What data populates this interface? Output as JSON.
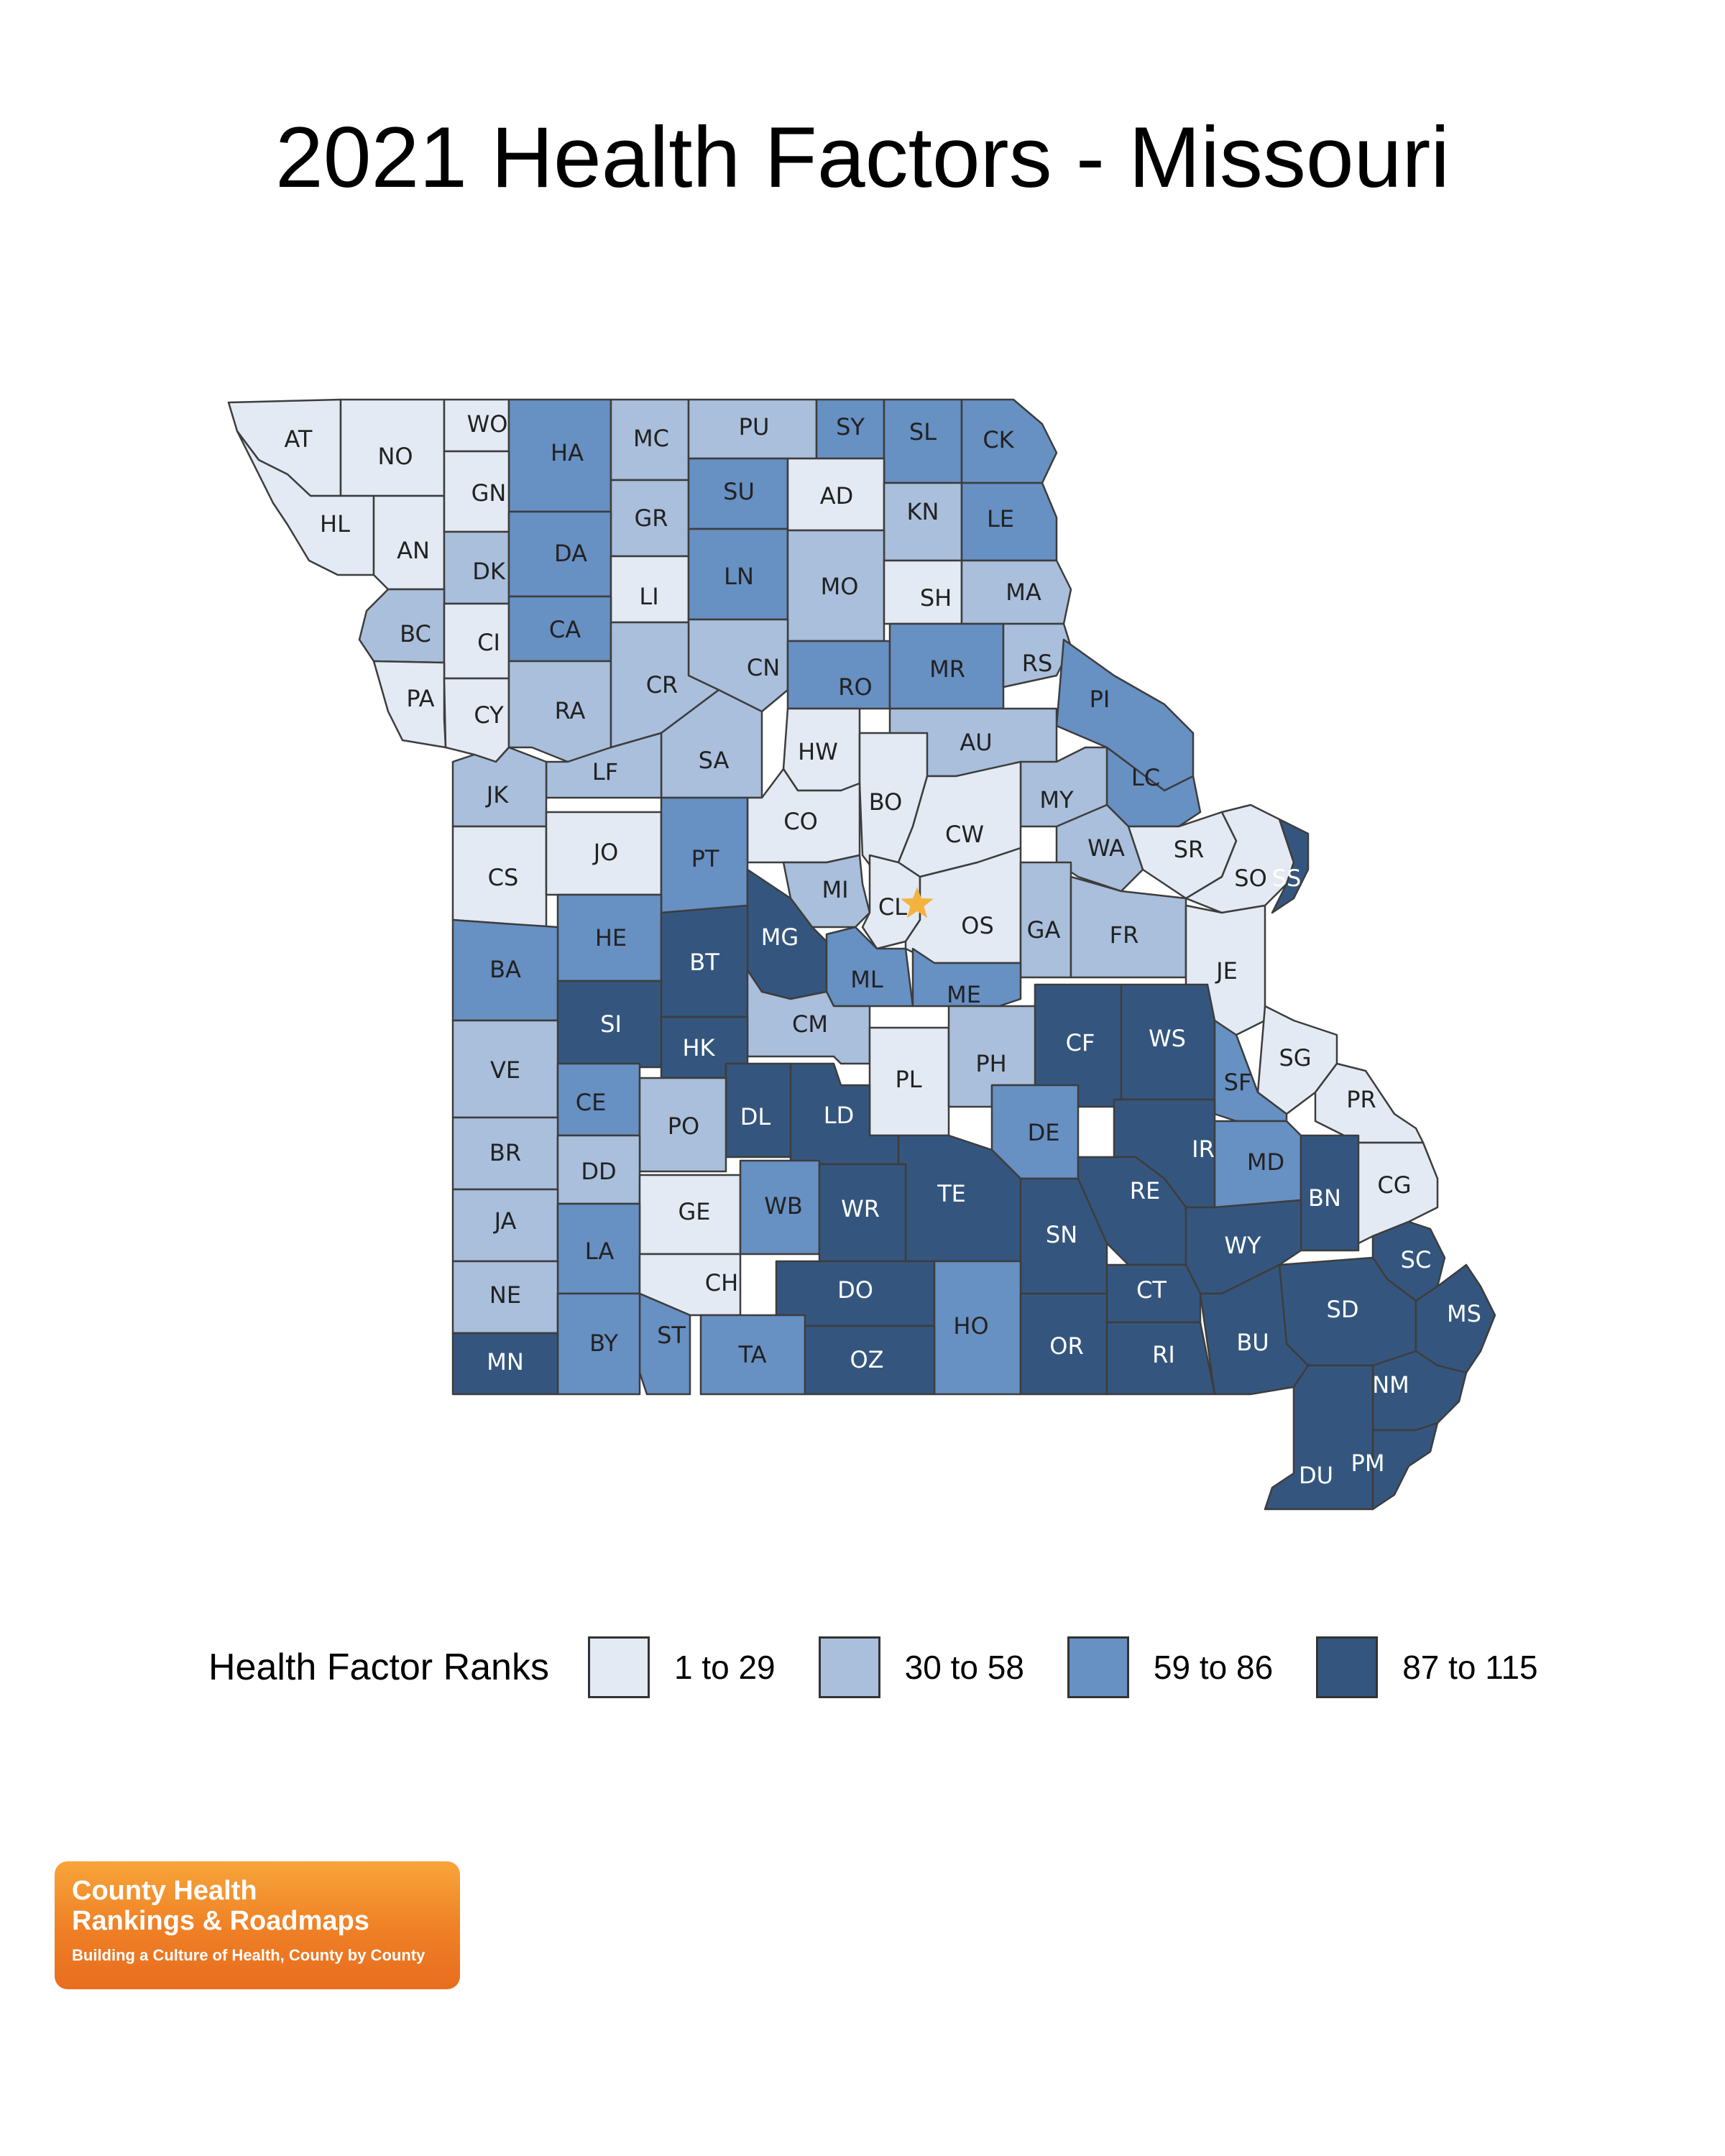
{
  "title": "2021 Health Factors - Missouri",
  "colors": {
    "1 to 29": "#e3eaf3",
    "30 to 58": "#a9bfdc",
    "59 to 86": "#6790c3",
    "87 to 115": "#34567e",
    "capital_star": "#f4b23f",
    "text_dark": "#222222",
    "text_light": "#ffffff"
  },
  "legend": {
    "title": "Health Factor Ranks",
    "items": [
      {
        "label": "1 to 29",
        "color": "#e3eaf3"
      },
      {
        "label": "30 to 58",
        "color": "#a9bfdc"
      },
      {
        "label": "59 to 86",
        "color": "#6790c3"
      },
      {
        "label": "87 to 115",
        "color": "#34567e"
      }
    ]
  },
  "counties": [
    {
      "abbr": "AT",
      "rank": "1 to 29"
    },
    {
      "abbr": "NO",
      "rank": "1 to 29"
    },
    {
      "abbr": "WO",
      "rank": "1 to 29"
    },
    {
      "abbr": "HA",
      "rank": "59 to 86"
    },
    {
      "abbr": "MC",
      "rank": "30 to 58"
    },
    {
      "abbr": "PU",
      "rank": "30 to 58"
    },
    {
      "abbr": "SY",
      "rank": "59 to 86"
    },
    {
      "abbr": "SL",
      "rank": "59 to 86"
    },
    {
      "abbr": "CK",
      "rank": "59 to 86"
    },
    {
      "abbr": "HL",
      "rank": "1 to 29"
    },
    {
      "abbr": "AN",
      "rank": "1 to 29"
    },
    {
      "abbr": "GN",
      "rank": "1 to 29"
    },
    {
      "abbr": "GR",
      "rank": "30 to 58"
    },
    {
      "abbr": "SU",
      "rank": "59 to 86"
    },
    {
      "abbr": "AD",
      "rank": "1 to 29"
    },
    {
      "abbr": "KN",
      "rank": "30 to 58"
    },
    {
      "abbr": "LE",
      "rank": "59 to 86"
    },
    {
      "abbr": "DK",
      "rank": "30 to 58"
    },
    {
      "abbr": "DA",
      "rank": "59 to 86"
    },
    {
      "abbr": "LI",
      "rank": "1 to 29"
    },
    {
      "abbr": "LN",
      "rank": "59 to 86"
    },
    {
      "abbr": "MO",
      "rank": "30 to 58"
    },
    {
      "abbr": "SH",
      "rank": "1 to 29"
    },
    {
      "abbr": "MA",
      "rank": "30 to 58"
    },
    {
      "abbr": "BC",
      "rank": "30 to 58"
    },
    {
      "abbr": "CI",
      "rank": "1 to 29"
    },
    {
      "abbr": "CA",
      "rank": "59 to 86"
    },
    {
      "abbr": "CN",
      "rank": "30 to 58"
    },
    {
      "abbr": "RO",
      "rank": "59 to 86"
    },
    {
      "abbr": "MR",
      "rank": "59 to 86"
    },
    {
      "abbr": "RS",
      "rank": "30 to 58"
    },
    {
      "abbr": "PA",
      "rank": "1 to 29"
    },
    {
      "abbr": "CY",
      "rank": "1 to 29"
    },
    {
      "abbr": "RA",
      "rank": "30 to 58"
    },
    {
      "abbr": "CR",
      "rank": "30 to 58"
    },
    {
      "abbr": "PI",
      "rank": "59 to 86"
    },
    {
      "abbr": "HW",
      "rank": "1 to 29"
    },
    {
      "abbr": "AU",
      "rank": "30 to 58"
    },
    {
      "abbr": "SA",
      "rank": "30 to 58"
    },
    {
      "abbr": "LF",
      "rank": "30 to 58"
    },
    {
      "abbr": "JK",
      "rank": "30 to 58"
    },
    {
      "abbr": "LC",
      "rank": "59 to 86"
    },
    {
      "abbr": "BO",
      "rank": "1 to 29"
    },
    {
      "abbr": "CO",
      "rank": "1 to 29"
    },
    {
      "abbr": "MY",
      "rank": "30 to 58"
    },
    {
      "abbr": "CW",
      "rank": "1 to 29"
    },
    {
      "abbr": "WA",
      "rank": "30 to 58"
    },
    {
      "abbr": "SR",
      "rank": "1 to 29"
    },
    {
      "abbr": "CS",
      "rank": "1 to 29"
    },
    {
      "abbr": "JO",
      "rank": "1 to 29"
    },
    {
      "abbr": "PT",
      "rank": "59 to 86"
    },
    {
      "abbr": "MI",
      "rank": "30 to 58"
    },
    {
      "abbr": "SO",
      "rank": "1 to 29"
    },
    {
      "abbr": "SS",
      "rank": "87 to 115"
    },
    {
      "abbr": "CL",
      "rank": "1 to 29"
    },
    {
      "abbr": "OS",
      "rank": "1 to 29"
    },
    {
      "abbr": "GA",
      "rank": "30 to 58"
    },
    {
      "abbr": "FR",
      "rank": "30 to 58"
    },
    {
      "abbr": "MG",
      "rank": "87 to 115"
    },
    {
      "abbr": "HE",
      "rank": "59 to 86"
    },
    {
      "abbr": "BT",
      "rank": "87 to 115"
    },
    {
      "abbr": "BA",
      "rank": "59 to 86"
    },
    {
      "abbr": "ML",
      "rank": "59 to 86"
    },
    {
      "abbr": "ME",
      "rank": "59 to 86"
    },
    {
      "abbr": "JE",
      "rank": "1 to 29"
    },
    {
      "abbr": "SI",
      "rank": "87 to 115"
    },
    {
      "abbr": "CM",
      "rank": "30 to 58"
    },
    {
      "abbr": "CF",
      "rank": "87 to 115"
    },
    {
      "abbr": "WS",
      "rank": "87 to 115"
    },
    {
      "abbr": "HK",
      "rank": "87 to 115"
    },
    {
      "abbr": "VE",
      "rank": "30 to 58"
    },
    {
      "abbr": "PL",
      "rank": "1 to 29"
    },
    {
      "abbr": "PH",
      "rank": "30 to 58"
    },
    {
      "abbr": "SG",
      "rank": "1 to 29"
    },
    {
      "abbr": "SF",
      "rank": "59 to 86"
    },
    {
      "abbr": "CE",
      "rank": "59 to 86"
    },
    {
      "abbr": "DL",
      "rank": "87 to 115"
    },
    {
      "abbr": "LD",
      "rank": "87 to 115"
    },
    {
      "abbr": "PR",
      "rank": "1 to 29"
    },
    {
      "abbr": "PO",
      "rank": "30 to 58"
    },
    {
      "abbr": "DE",
      "rank": "59 to 86"
    },
    {
      "abbr": "IR",
      "rank": "87 to 115"
    },
    {
      "abbr": "MD",
      "rank": "59 to 86"
    },
    {
      "abbr": "BR",
      "rank": "30 to 58"
    },
    {
      "abbr": "DD",
      "rank": "30 to 58"
    },
    {
      "abbr": "BN",
      "rank": "87 to 115"
    },
    {
      "abbr": "TE",
      "rank": "87 to 115"
    },
    {
      "abbr": "RE",
      "rank": "87 to 115"
    },
    {
      "abbr": "CG",
      "rank": "1 to 29"
    },
    {
      "abbr": "GE",
      "rank": "1 to 29"
    },
    {
      "abbr": "WB",
      "rank": "59 to 86"
    },
    {
      "abbr": "WR",
      "rank": "87 to 115"
    },
    {
      "abbr": "SN",
      "rank": "87 to 115"
    },
    {
      "abbr": "JA",
      "rank": "30 to 58"
    },
    {
      "abbr": "WY",
      "rank": "87 to 115"
    },
    {
      "abbr": "LA",
      "rank": "59 to 86"
    },
    {
      "abbr": "SC",
      "rank": "87 to 115"
    },
    {
      "abbr": "CH",
      "rank": "1 to 29"
    },
    {
      "abbr": "DO",
      "rank": "87 to 115"
    },
    {
      "abbr": "CT",
      "rank": "87 to 115"
    },
    {
      "abbr": "NE",
      "rank": "30 to 58"
    },
    {
      "abbr": "SD",
      "rank": "87 to 115"
    },
    {
      "abbr": "MS",
      "rank": "87 to 115"
    },
    {
      "abbr": "HO",
      "rank": "59 to 86"
    },
    {
      "abbr": "ST",
      "rank": "59 to 86"
    },
    {
      "abbr": "BY",
      "rank": "59 to 86"
    },
    {
      "abbr": "OR",
      "rank": "87 to 115"
    },
    {
      "abbr": "BU",
      "rank": "87 to 115"
    },
    {
      "abbr": "TA",
      "rank": "59 to 86"
    },
    {
      "abbr": "RI",
      "rank": "87 to 115"
    },
    {
      "abbr": "OZ",
      "rank": "87 to 115"
    },
    {
      "abbr": "MN",
      "rank": "87 to 115"
    },
    {
      "abbr": "NM",
      "rank": "87 to 115"
    },
    {
      "abbr": "PM",
      "rank": "87 to 115"
    },
    {
      "abbr": "DU",
      "rank": "87 to 115"
    }
  ],
  "capital": {
    "icon": "star-icon"
  },
  "logo": {
    "line1": "County Health",
    "line2": "Rankings & Roadmaps",
    "tagline": "Building a Culture of Health, County by County"
  }
}
